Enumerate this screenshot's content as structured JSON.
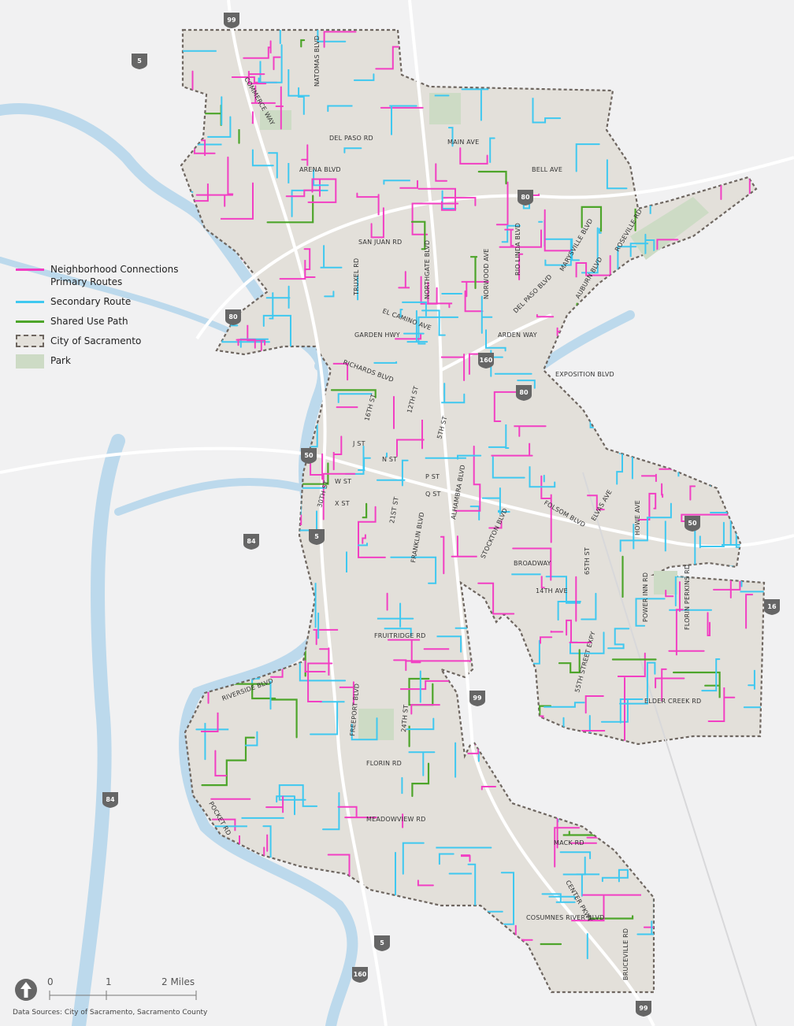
{
  "legend": {
    "items": [
      {
        "label_line1": "Neighborhood Connections",
        "label_line2": "Primary Routes",
        "color": "#f23fc3"
      },
      {
        "label": "Secondary Route",
        "color": "#3fc8f0"
      },
      {
        "label": "Shared Use Path",
        "color": "#4da52a"
      },
      {
        "label": "City of Sacramento",
        "color": "#e3e0da"
      },
      {
        "label": "Park",
        "color": "#cddbc5"
      }
    ]
  },
  "scale_bar": {
    "tick0": "0",
    "tick1": "1",
    "tick2": "2 Miles"
  },
  "north_arrow": "north-arrow-icon",
  "data_sources": "Data Sources: City of Sacramento, Sacramento County",
  "colors": {
    "primary_route": "#f23fc3",
    "secondary_route": "#3fc8f0",
    "shared_use_path": "#4da52a",
    "city_fill": "#e3e0da",
    "park": "#cddbc5",
    "water": "#bcd9ec",
    "background": "#f1f1f2"
  },
  "highways": [
    "99",
    "5",
    "80",
    "80",
    "160",
    "80",
    "50",
    "50",
    "84",
    "5",
    "16",
    "99",
    "84",
    "5",
    "160",
    "99"
  ],
  "streets": [
    "NATOMAS BLVD",
    "COMMERCE WAY",
    "DEL PASO RD",
    "ARENA BLVD",
    "MAIN AVE",
    "BELL AVE",
    "SAN JUAN RD",
    "TRUXEL RD",
    "NORTHGATE BLVD",
    "NORWOOD AVE",
    "RIO LINDA BLVD",
    "MARYSVILLE BLVD",
    "ROSEVILLE RD",
    "AUBURN BLVD",
    "EL CAMINO AVE",
    "GARDEN HWY",
    "DEL PASO BLVD",
    "ARDEN WAY",
    "EXPOSITION BLVD",
    "RICHARDS BLVD",
    "16TH ST",
    "12TH ST",
    "J ST",
    "N ST",
    "FOLSOM BLVD",
    "ELVAS AVE",
    "HOWE AVE",
    "ALHAMBRA BLVD",
    "21ST ST",
    "FRANKLIN BLVD",
    "STOCKTON BLVD",
    "BROADWAY",
    "14TH AVE",
    "65TH ST",
    "POWER INN RD",
    "FLORIN PERKINS RD",
    "FRUITRIDGE RD",
    "FREEPORT BLVD",
    "24TH ST",
    "55TH STREET EXPY",
    "ELDER CREEK RD",
    "RIVERSIDE BLVD",
    "POCKET RD",
    "FLORIN RD",
    "MEADOWVIEW RD",
    "MACK RD",
    "CENTER PKWY",
    "COSUMNES RIVER BLVD",
    "BRUCEVILLE RD",
    "X ST",
    "W ST",
    "P ST",
    "Q ST",
    "5TH ST",
    "30TH ST"
  ]
}
